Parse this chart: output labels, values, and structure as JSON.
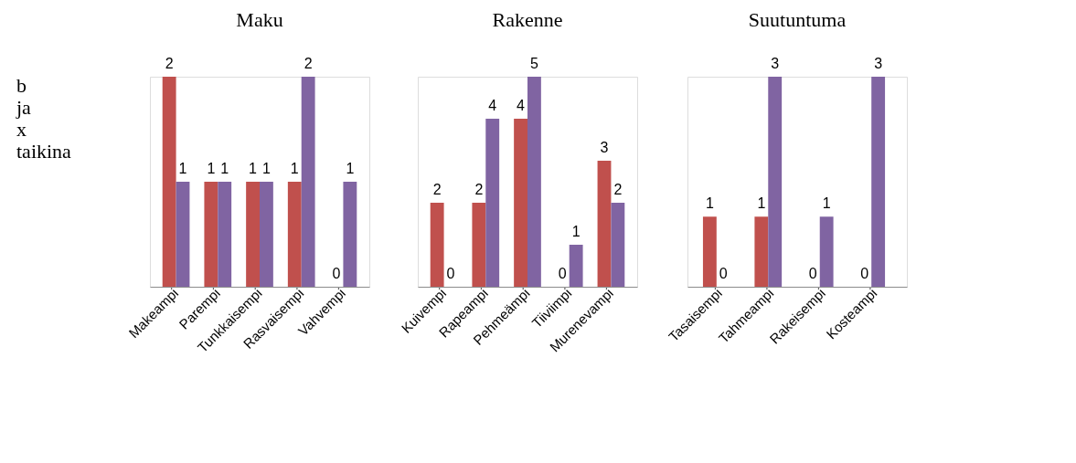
{
  "chart_data": [
    {
      "type": "bar",
      "title": "Maku",
      "categories": [
        "Makeampi",
        "Parempi",
        "Tunkkaisempi",
        "Rasvaisempi",
        "Vahvempi"
      ],
      "annotations": [
        "b ja x taikina"
      ],
      "data_labels": true,
      "grid": false,
      "legend": false,
      "series": [
        {
          "color": "#c0504d",
          "values": [
            2,
            1,
            1,
            1,
            0
          ]
        },
        {
          "color": "#8064a2",
          "values": [
            1,
            1,
            1,
            2,
            1
          ]
        }
      ]
    },
    {
      "type": "bar",
      "title": "Rakenne",
      "categories": [
        "Kuivempi",
        "Rapeampi",
        "Pehmeämpi",
        "Tiiviimpi",
        "Murenevampi"
      ],
      "data_labels": true,
      "grid": false,
      "legend": false,
      "series": [
        {
          "color": "#c0504d",
          "values": [
            2,
            2,
            4,
            0,
            3
          ]
        },
        {
          "color": "#8064a2",
          "values": [
            0,
            4,
            5,
            1,
            2
          ]
        }
      ]
    },
    {
      "type": "bar",
      "title": "Suutuntuma",
      "categories": [
        "Tasaisempi",
        "Tahmeampi",
        "Rakeisempi",
        "Kosteampi"
      ],
      "data_labels": true,
      "grid": false,
      "legend": false,
      "series": [
        {
          "color": "#c0504d",
          "values": [
            1,
            1,
            0,
            0
          ]
        },
        {
          "color": "#8064a2",
          "values": [
            0,
            3,
            1,
            3
          ]
        }
      ]
    }
  ]
}
